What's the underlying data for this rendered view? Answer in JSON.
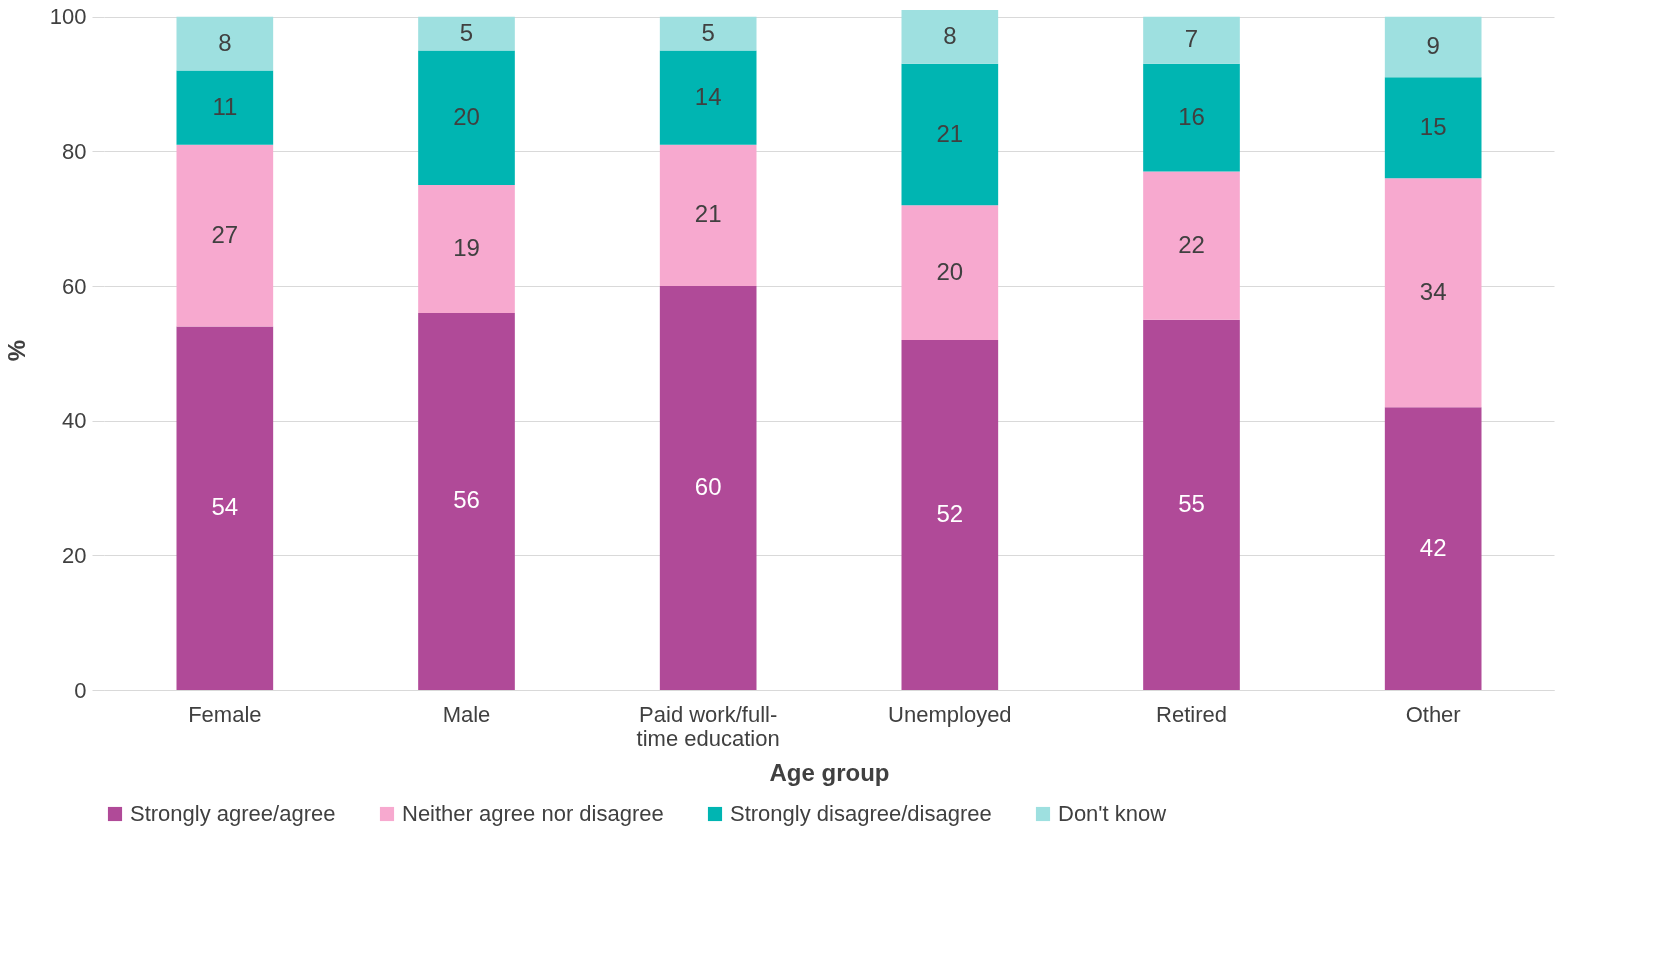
{
  "chart_data": {
    "type": "bar",
    "stacked": true,
    "xlabel": "Age group",
    "ylabel": "%",
    "categories": [
      "Female",
      "Male",
      "Paid work/full-time education",
      "Unemployed",
      "Retired",
      "Other"
    ],
    "series": [
      {
        "name": "Strongly agree/agree",
        "color": "#b04a98",
        "values": [
          54,
          56,
          60,
          52,
          55,
          42
        ]
      },
      {
        "name": "Neither agree nor disagree",
        "color": "#f7a9cf",
        "values": [
          27,
          19,
          21,
          20,
          22,
          34
        ]
      },
      {
        "name": "Strongly disagree/disagree",
        "color": "#00b5b2",
        "values": [
          11,
          20,
          14,
          21,
          16,
          15
        ]
      },
      {
        "name": "Don't know",
        "color": "#9ee0e0",
        "values": [
          8,
          5,
          5,
          8,
          7,
          9
        ]
      }
    ],
    "ylim": [
      0,
      101
    ],
    "yticks": [
      0,
      20,
      40,
      60,
      80,
      100
    ],
    "grid": "y",
    "legend": "bottom",
    "data_labels": true
  }
}
